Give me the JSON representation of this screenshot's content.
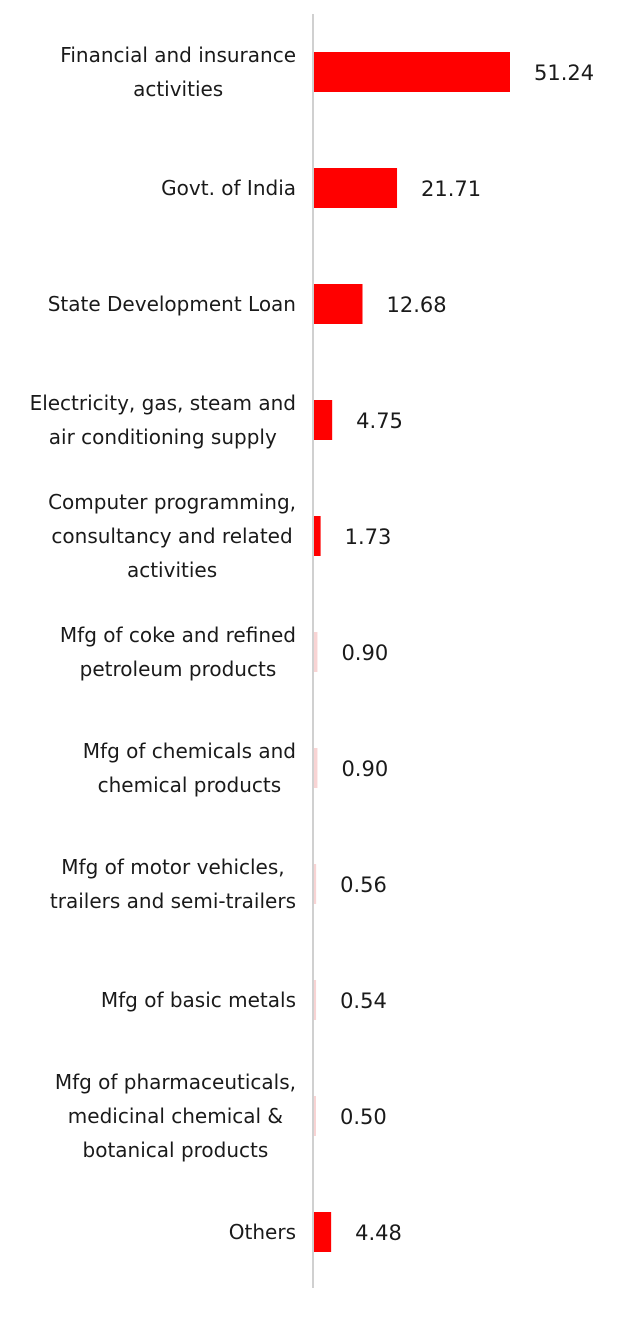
{
  "chart_data": {
    "type": "bar",
    "orientation": "horizontal",
    "categories": [
      [
        "Financial and insurance",
        "activities"
      ],
      [
        "Govt. of India"
      ],
      [
        "State Development Loan"
      ],
      [
        "Electricity, gas, steam and",
        "air conditioning supply"
      ],
      [
        "Computer programming,",
        "consultancy and related",
        "activities"
      ],
      [
        "Mfg of coke and refined",
        "petroleum products"
      ],
      [
        "Mfg of chemicals and",
        "chemical products"
      ],
      [
        "Mfg of motor vehicles,",
        "trailers and semi-trailers"
      ],
      [
        "Mfg of basic metals"
      ],
      [
        "Mfg of pharmaceuticals,",
        "medicinal chemical &",
        "botanical products"
      ],
      [
        "Others"
      ]
    ],
    "values": [
      51.24,
      21.71,
      12.68,
      4.75,
      1.73,
      0.9,
      0.9,
      0.56,
      0.54,
      0.5,
      4.48
    ],
    "value_labels": [
      "51.24",
      "21.71",
      "12.68",
      "4.75",
      "1.73",
      "0.90",
      "0.90",
      "0.56",
      "0.54",
      "0.50",
      "4.48"
    ],
    "faded": [
      false,
      false,
      false,
      false,
      false,
      true,
      true,
      true,
      true,
      true,
      false
    ],
    "colors": {
      "bar": "#ff0000",
      "bar_faded": "#f8d4d4",
      "axis": "#d0d0d0"
    },
    "title": "",
    "xlabel": "",
    "ylabel": "",
    "grid": false,
    "legend": "none"
  }
}
